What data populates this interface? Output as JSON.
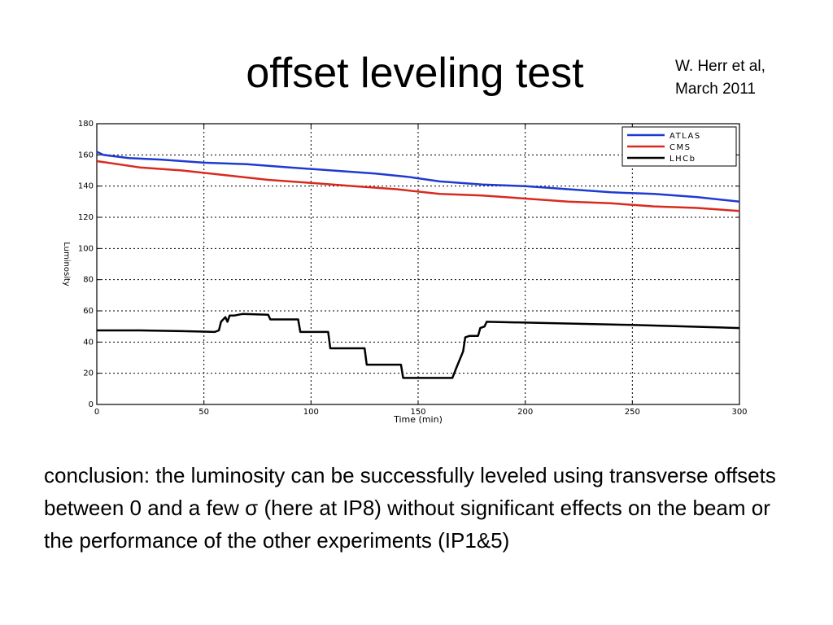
{
  "slide": {
    "title": "offset leveling test",
    "attribution": [
      "W. Herr et al,",
      "March 2011"
    ],
    "conclusion": "conclusion:  the luminosity can be successfully leveled using transverse offsets between 0 and a few σ (here at IP8) without significant effects on the beam or the performance of the other experiments (IP1&5)"
  },
  "chart_data": {
    "type": "line",
    "title": "",
    "xlabel": "Time (min)",
    "ylabel": "Luminosity",
    "xlim": [
      0,
      300
    ],
    "ylim": [
      0,
      180
    ],
    "xticks": [
      0,
      50,
      100,
      150,
      200,
      250,
      300
    ],
    "yticks": [
      0,
      20,
      40,
      60,
      80,
      100,
      120,
      140,
      160,
      180
    ],
    "grid": true,
    "legend_position": "top-right",
    "series": [
      {
        "name": "ATLAS",
        "color": "#1f3ad1",
        "points": [
          [
            0,
            162
          ],
          [
            3,
            160
          ],
          [
            15,
            158
          ],
          [
            30,
            157
          ],
          [
            50,
            155
          ],
          [
            70,
            154
          ],
          [
            90,
            152
          ],
          [
            110,
            150
          ],
          [
            130,
            148
          ],
          [
            145,
            146
          ],
          [
            160,
            143
          ],
          [
            180,
            141
          ],
          [
            200,
            140
          ],
          [
            220,
            138
          ],
          [
            240,
            136
          ],
          [
            260,
            135
          ],
          [
            280,
            133
          ],
          [
            300,
            130
          ]
        ]
      },
      {
        "name": "CMS",
        "color": "#d92a1f",
        "points": [
          [
            0,
            156
          ],
          [
            20,
            152
          ],
          [
            40,
            150
          ],
          [
            60,
            147
          ],
          [
            80,
            144
          ],
          [
            100,
            142
          ],
          [
            120,
            140
          ],
          [
            140,
            138
          ],
          [
            160,
            135
          ],
          [
            180,
            134
          ],
          [
            200,
            132
          ],
          [
            220,
            130
          ],
          [
            240,
            129
          ],
          [
            260,
            127
          ],
          [
            280,
            126
          ],
          [
            300,
            124
          ]
        ]
      },
      {
        "name": "LHCb",
        "color": "#000000",
        "points": [
          [
            0,
            47.5
          ],
          [
            20,
            47.5
          ],
          [
            40,
            47
          ],
          [
            55,
            46.5
          ],
          [
            57,
            47.5
          ],
          [
            58,
            53
          ],
          [
            60,
            56
          ],
          [
            61,
            53
          ],
          [
            62,
            57
          ],
          [
            64,
            57
          ],
          [
            68,
            58
          ],
          [
            80,
            57.5
          ],
          [
            81,
            54.5
          ],
          [
            94,
            54.5
          ],
          [
            95,
            46.5
          ],
          [
            108,
            46.5
          ],
          [
            109,
            36
          ],
          [
            125,
            36
          ],
          [
            126,
            25.5
          ],
          [
            142,
            25.5
          ],
          [
            143,
            17
          ],
          [
            166,
            17
          ],
          [
            168,
            24
          ],
          [
            171,
            34
          ],
          [
            172,
            43
          ],
          [
            174,
            44
          ],
          [
            178,
            44
          ],
          [
            179,
            49
          ],
          [
            181,
            50
          ],
          [
            182,
            53
          ],
          [
            200,
            52.5
          ],
          [
            250,
            51
          ],
          [
            300,
            49
          ]
        ]
      }
    ]
  }
}
